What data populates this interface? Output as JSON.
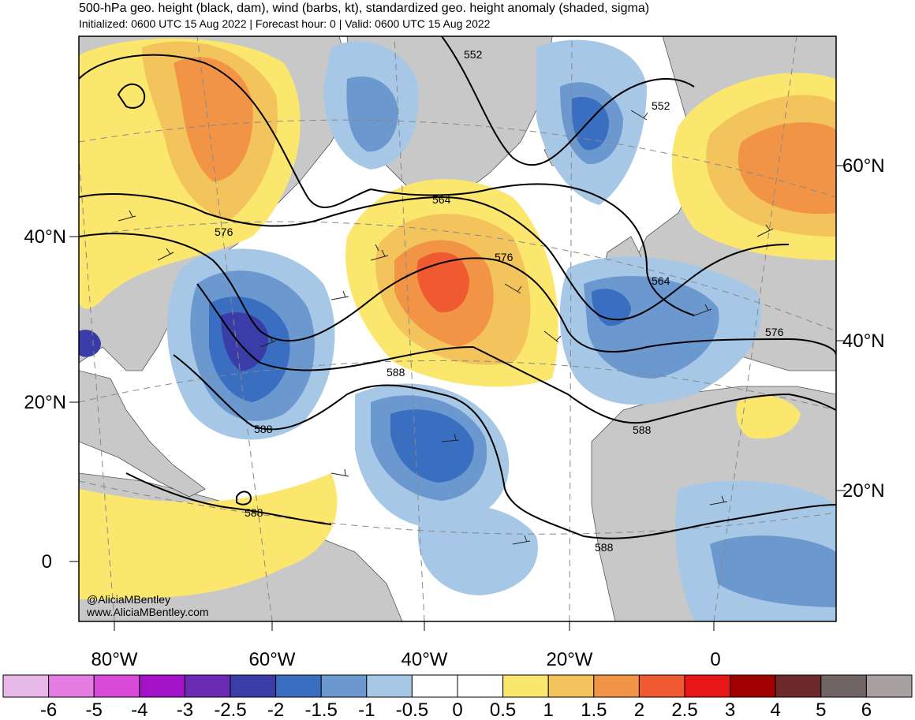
{
  "header": {
    "title": "500-hPa geo. height (black, dam), wind (barbs, kt), standardized geo. height anomaly (shaded, sigma)",
    "subtitle": "Initialized: 0600 UTC 15 Aug 2022 | Forecast hour: 0 | Valid: 0600 UTC 15 Aug 2022"
  },
  "map": {
    "lat_labels_left": [
      "40°N",
      "20°N",
      "0"
    ],
    "lat_labels_right": [
      "60°N",
      "40°N",
      "20°N"
    ],
    "lon_labels_bottom": [
      "80°W",
      "60°W",
      "40°W",
      "20°W",
      "0"
    ],
    "contour_labels": [
      "552",
      "552",
      "564",
      "576",
      "576",
      "564",
      "576",
      "588",
      "588",
      "588",
      "588",
      "588"
    ],
    "credit_handle": "@AliciaMBentley",
    "credit_url": "www.AliciaMBentley.com",
    "colors": {
      "land": "#c8c8c8",
      "coast": "#555555",
      "ocean": "#ffffff"
    }
  },
  "colorbar": {
    "labels": [
      "-6",
      "-5",
      "-4",
      "-3",
      "-2.5",
      "-2",
      "-1.5",
      "-1",
      "-0.5",
      "0",
      "0.5",
      "1",
      "1.5",
      "2",
      "2.5",
      "3",
      "4",
      "5",
      "6"
    ],
    "colors": [
      "#e8b8e8",
      "#e47ce4",
      "#d84ad8",
      "#a412c8",
      "#6a2ab4",
      "#3a3ca8",
      "#3a6ec0",
      "#6c98d0",
      "#a6c8e6",
      "#ffffff",
      "#ffffff",
      "#fbe66e",
      "#f4c45c",
      "#f29446",
      "#f05a30",
      "#e81616",
      "#a00000",
      "#6e2a2a",
      "#706464",
      "#a8a0a0"
    ]
  }
}
